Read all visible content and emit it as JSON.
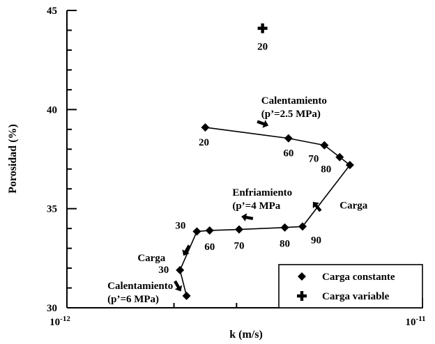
{
  "chart_data": {
    "type": "scatter",
    "xlabel": "k (m/s)",
    "ylabel": "Porosidad (%)",
    "xscale": "log",
    "xlim": [
      1e-12,
      1e-11
    ],
    "ylim": [
      30,
      45
    ],
    "x_ticks": [
      {
        "value": 1e-12,
        "base": "10",
        "exp": "-12"
      },
      {
        "value": 1e-11,
        "base": "10",
        "exp": "-11"
      }
    ],
    "y_ticks": [
      {
        "value": 30,
        "label": "30"
      },
      {
        "value": 35,
        "label": "35"
      },
      {
        "value": 40,
        "label": "40"
      },
      {
        "value": 45,
        "label": "45"
      }
    ],
    "legend_position": "bottom-right",
    "series": [
      {
        "name": "Carga constante",
        "marker": "diamond",
        "connected": true,
        "points": [
          {
            "x": 2.17e-12,
            "y": 30.6
          },
          {
            "x": 2.08e-12,
            "y": 31.9,
            "label": "30"
          },
          {
            "x": 2.32e-12,
            "y": 33.85,
            "label": "30"
          },
          {
            "x": 2.52e-12,
            "y": 33.9,
            "label": "60"
          },
          {
            "x": 3.05e-12,
            "y": 33.95,
            "label": "70"
          },
          {
            "x": 4.1e-12,
            "y": 34.05,
            "label": "80"
          },
          {
            "x": 4.6e-12,
            "y": 34.1,
            "label": "90"
          },
          {
            "x": 6.25e-12,
            "y": 37.2
          },
          {
            "x": 5.85e-12,
            "y": 37.6,
            "label": "80"
          },
          {
            "x": 5.3e-12,
            "y": 38.2,
            "label": "70"
          },
          {
            "x": 4.2e-12,
            "y": 38.55,
            "label": "60"
          },
          {
            "x": 2.45e-12,
            "y": 39.1,
            "label": "20"
          }
        ]
      },
      {
        "name": "Carga variable",
        "marker": "plus",
        "connected": false,
        "points": [
          {
            "x": 3.55e-12,
            "y": 44.1,
            "label": "20"
          }
        ]
      }
    ],
    "annotations": [
      {
        "lines": [
          "Calentamiento",
          "(p’=2.5 MPa)"
        ],
        "x": 3.52e-12,
        "y": 40.3,
        "arrow": {
          "x": 3.55e-12,
          "y": 39.3,
          "angle": 20
        }
      },
      {
        "lines": [
          "Enfriamiento",
          "(p’=4 MPa"
        ],
        "x": 2.92e-12,
        "y": 35.65,
        "arrow": {
          "x": 3.22e-12,
          "y": 34.55,
          "angle": 190
        }
      },
      {
        "lines": [
          "Carga"
        ],
        "x": 5.85e-12,
        "y": 35.0,
        "arrow": {
          "x": 5.05e-12,
          "y": 35.1,
          "angle": 230
        }
      },
      {
        "lines": [
          "Carga"
        ],
        "x": 1.58e-12,
        "y": 32.35,
        "arrow": {
          "x": 2.17e-12,
          "y": 32.9,
          "angle": 120
        }
      },
      {
        "lines": [
          "Calentamiento",
          "(p’=6 MPa)"
        ],
        "x": 1.3e-12,
        "y": 30.95,
        "arrow": {
          "x": 2.05e-12,
          "y": 31.1,
          "angle": 60
        }
      }
    ]
  }
}
